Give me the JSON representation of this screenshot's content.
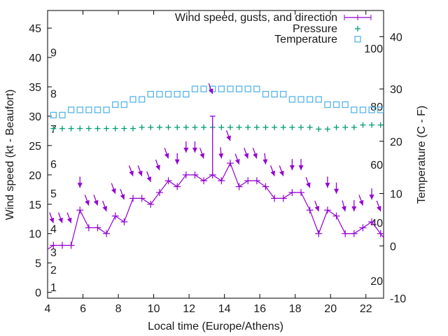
{
  "chart_data": {
    "type": "line",
    "title": "",
    "xlabel": "Local time (Europe/Athens)",
    "ylabel": "Wind speed (kt - Beaufort)",
    "y2label": "Temperature (C - F)",
    "xlim": [
      4,
      23
    ],
    "ylim": [
      -1,
      48
    ],
    "y2lim": [
      -10,
      45
    ],
    "x_ticks": [
      4,
      6,
      8,
      10,
      12,
      14,
      16,
      18,
      20,
      22
    ],
    "y_ticks": [
      0,
      5,
      10,
      15,
      20,
      25,
      30,
      35,
      40,
      45
    ],
    "y2_ticks": [
      -10,
      0,
      10,
      20,
      30,
      40
    ],
    "grid": false,
    "legend_position": "top-right",
    "beaufort_labels": [
      {
        "label": "1",
        "kt": 1
      },
      {
        "label": "2",
        "kt": 4
      },
      {
        "label": "3",
        "kt": 7
      },
      {
        "label": "4",
        "kt": 11
      },
      {
        "label": "5",
        "kt": 17
      },
      {
        "label": "6",
        "kt": 22
      },
      {
        "label": "7",
        "kt": 28
      },
      {
        "label": "8",
        "kt": 34
      },
      {
        "label": "9",
        "kt": 41
      }
    ],
    "fahrenheit_labels": [
      {
        "label": "20",
        "f": 20
      },
      {
        "label": "40",
        "f": 40
      },
      {
        "label": "60",
        "f": 60
      },
      {
        "label": "80",
        "f": 80
      },
      {
        "label": "100",
        "f": 100
      }
    ],
    "x": [
      3.83,
      4.33,
      4.83,
      5.33,
      5.83,
      6.33,
      6.83,
      7.33,
      7.83,
      8.33,
      8.83,
      9.33,
      9.83,
      10.33,
      10.83,
      11.33,
      11.83,
      12.33,
      12.83,
      13.33,
      13.83,
      14.33,
      14.83,
      15.33,
      15.83,
      16.33,
      16.83,
      17.33,
      17.83,
      18.33,
      18.83,
      19.33,
      19.83,
      20.33,
      20.83,
      21.33,
      21.83,
      22.33,
      22.83,
      23.33
    ],
    "series": [
      {
        "name": "Wind speed, gusts, and direction",
        "color": "#9400d3",
        "axis": "left",
        "values": [
          7,
          8,
          8,
          8,
          14,
          11,
          11,
          10,
          13,
          12,
          16,
          16,
          15,
          17,
          19,
          18,
          20,
          20,
          19,
          20,
          19,
          22,
          18,
          19,
          19,
          18,
          16,
          16,
          17,
          17,
          14,
          10,
          14,
          13,
          10,
          10,
          11,
          12,
          10,
          8
        ],
        "gusts": [
          null,
          null,
          null,
          null,
          null,
          null,
          null,
          null,
          null,
          null,
          null,
          null,
          null,
          null,
          null,
          null,
          null,
          null,
          null,
          30,
          null,
          null,
          null,
          null,
          null,
          null,
          null,
          null,
          null,
          null,
          null,
          null,
          null,
          null,
          null,
          null,
          null,
          null,
          null,
          null
        ],
        "direction_deg": [
          null,
          340,
          340,
          340,
          360,
          340,
          340,
          340,
          340,
          340,
          340,
          340,
          340,
          340,
          340,
          360,
          360,
          360,
          340,
          340,
          355,
          340,
          340,
          340,
          340,
          355,
          340,
          340,
          360,
          360,
          340,
          340,
          360,
          360,
          345,
          360,
          340,
          360,
          340,
          null
        ]
      },
      {
        "name": "Pressure",
        "color": "#009e73",
        "axis": "left",
        "values": [
          null,
          27.9,
          27.9,
          27.9,
          27.9,
          27.9,
          27.9,
          27.9,
          27.9,
          27.9,
          27.9,
          28.1,
          28.1,
          28.1,
          28.1,
          28.1,
          28.1,
          28.1,
          28.1,
          28.1,
          28.1,
          28.1,
          28.1,
          28.1,
          28.1,
          28.1,
          28.1,
          28.1,
          28.1,
          28.1,
          28.1,
          27.8,
          27.8,
          28.1,
          28.1,
          28.1,
          28.5,
          28.5,
          28.5,
          null
        ]
      },
      {
        "name": "Temperature",
        "color": "#56b4e9",
        "axis": "right",
        "values": [
          null,
          25,
          25,
          26,
          26,
          26,
          26,
          26,
          27,
          27,
          28,
          28,
          29,
          29,
          29,
          29,
          29,
          30,
          30,
          30,
          30,
          30,
          30,
          30,
          30,
          29,
          29,
          29,
          28,
          28,
          28,
          28,
          27,
          27,
          27,
          26,
          26,
          26,
          26,
          null
        ]
      }
    ]
  }
}
